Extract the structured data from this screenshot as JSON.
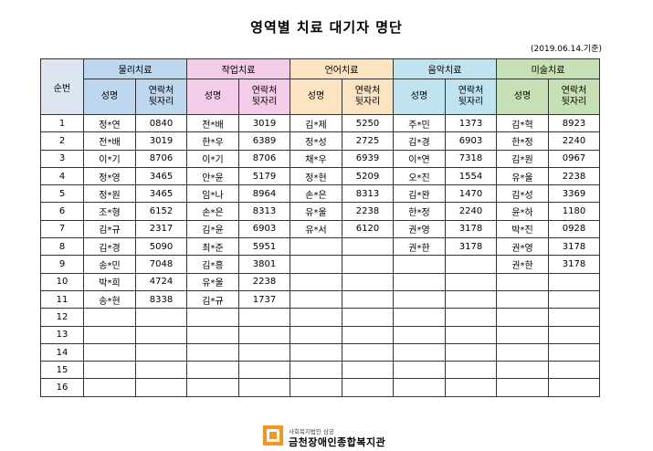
{
  "title": "영역별 치료 대기자 명단",
  "date": "(2019.06.14.기준)",
  "seq_label": "순번",
  "sub_name": "성명",
  "sub_contact_1": "연락처",
  "sub_contact_2": "뒷자리",
  "categories": [
    "물리치료",
    "작업치료",
    "언어치료",
    "음악치료",
    "미술치료"
  ],
  "category_colors": [
    "#bdd7ee",
    "#f4cbe9",
    "#fce4c2",
    "#bfe3ef",
    "#c6e0b4"
  ],
  "rows": [
    [
      "1",
      "정*연",
      "0840",
      "전*배",
      "3019",
      "김*제",
      "5250",
      "주*민",
      "1373",
      "김*혁",
      "8923"
    ],
    [
      "2",
      "전*배",
      "3019",
      "한*우",
      "6389",
      "정*성",
      "2725",
      "김*경",
      "6903",
      "한*정",
      "2240"
    ],
    [
      "3",
      "이*기",
      "8706",
      "이*기",
      "8706",
      "채*우",
      "6939",
      "이*연",
      "7318",
      "김*원",
      "0967"
    ],
    [
      "4",
      "정*영",
      "3465",
      "안*윤",
      "5179",
      "정*현",
      "5209",
      "오*진",
      "1554",
      "유*울",
      "2238"
    ],
    [
      "5",
      "정*원",
      "3465",
      "임*나",
      "8964",
      "손*은",
      "8313",
      "김*완",
      "1470",
      "김*성",
      "3369"
    ],
    [
      "6",
      "조*형",
      "6152",
      "손*은",
      "8313",
      "유*울",
      "2238",
      "한*정",
      "2240",
      "윤*하",
      "1180"
    ],
    [
      "7",
      "김*규",
      "2317",
      "김*윤",
      "6903",
      "유*서",
      "6120",
      "권*영",
      "3178",
      "박*진",
      "0928"
    ],
    [
      "8",
      "김*경",
      "5090",
      "최*준",
      "5951",
      "",
      "",
      "권*한",
      "3178",
      "권*영",
      "3178"
    ],
    [
      "9",
      "송*민",
      "7048",
      "김*흥",
      "3801",
      "",
      "",
      "",
      "",
      "권*한",
      "3178"
    ],
    [
      "10",
      "박*희",
      "4724",
      "유*울",
      "2238",
      "",
      "",
      "",
      "",
      "",
      ""
    ],
    [
      "11",
      "송*현",
      "8338",
      "김*규",
      "1737",
      "",
      "",
      "",
      "",
      "",
      ""
    ],
    [
      "12",
      "",
      "",
      "",
      "",
      "",
      "",
      "",
      "",
      "",
      ""
    ],
    [
      "13",
      "",
      "",
      "",
      "",
      "",
      "",
      "",
      "",
      "",
      ""
    ],
    [
      "14",
      "",
      "",
      "",
      "",
      "",
      "",
      "",
      "",
      "",
      ""
    ],
    [
      "15",
      "",
      "",
      "",
      "",
      "",
      "",
      "",
      "",
      "",
      ""
    ],
    [
      "16",
      "",
      "",
      "",
      "",
      "",
      "",
      "",
      "",
      "",
      ""
    ]
  ],
  "footer": {
    "org_small": "사회복지법인 삼궁",
    "org_name": "금천장애인종합복지관",
    "logo_icon": "org-logo-icon"
  }
}
